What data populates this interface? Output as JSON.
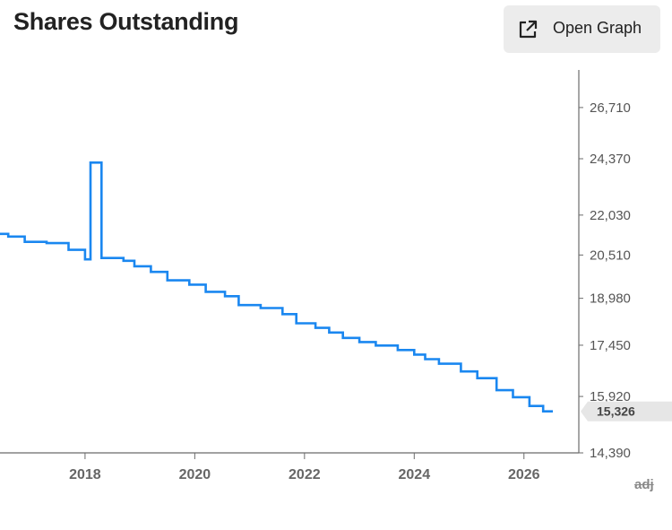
{
  "header": {
    "title": "Shares Outstanding",
    "open_graph_label": "Open Graph"
  },
  "adj_label": "adj",
  "colors": {
    "line": "#1a87f0",
    "axis": "#6b6b6b",
    "last_badge": "#e6e6e6"
  },
  "chart_data": {
    "type": "line",
    "title": "Shares Outstanding",
    "xlabel": "",
    "ylabel": "",
    "y_ticks": [
      14390,
      15920,
      17450,
      18980,
      20510,
      22030,
      24370,
      26710
    ],
    "y_tick_labels": [
      "14,390",
      "15,920",
      "17,450",
      "18,980",
      "20,510",
      "22,030",
      "24,370",
      "26,710"
    ],
    "x_ticks": [
      2018,
      2020,
      2022,
      2024,
      2026
    ],
    "x_tick_labels": [
      "2018",
      "2020",
      "2022",
      "2024",
      "2026"
    ],
    "xlim": [
      2016.45,
      2027.0
    ],
    "ylim": [
      14390,
      27800
    ],
    "y_scale": "log",
    "grid": false,
    "last_value_label": "15,326",
    "series": [
      {
        "step": true,
        "x": [
          2016.45,
          2016.6,
          2016.9,
          2017.3,
          2017.7,
          2018.0,
          2018.1,
          2018.3,
          2018.7,
          2018.9,
          2019.2,
          2019.5,
          2019.9,
          2020.2,
          2020.55,
          2020.8,
          2021.2,
          2021.6,
          2021.85,
          2022.2,
          2022.45,
          2022.7,
          2023.0,
          2023.3,
          2023.7,
          2024.0,
          2024.2,
          2024.45,
          2024.85,
          2025.15,
          2025.5,
          2025.8,
          2026.1,
          2026.35
        ],
        "y": [
          21300,
          21200,
          21000,
          20950,
          20700,
          20350,
          24200,
          20400,
          20300,
          20100,
          19900,
          19600,
          19450,
          19200,
          19050,
          18750,
          18650,
          18450,
          18150,
          18000,
          17850,
          17680,
          17550,
          17440,
          17300,
          17160,
          17020,
          16880,
          16650,
          16450,
          16100,
          15900,
          15650,
          15500
        ]
      }
    ]
  }
}
